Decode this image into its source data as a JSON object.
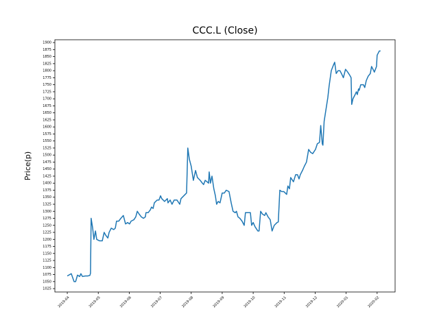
{
  "chart_data": {
    "type": "line",
    "title": "CCC.L (Close)",
    "y_label": "Price(p)",
    "color": "#1f77b4",
    "x": [
      0,
      0.13,
      0.22,
      0.27,
      0.33,
      0.4,
      0.44,
      0.49,
      0.58,
      0.66,
      0.73,
      0.75,
      0.77,
      0.82,
      0.86,
      0.91,
      0.95,
      1.04,
      1.13,
      1.19,
      1.24,
      1.31,
      1.35,
      1.42,
      1.5,
      1.55,
      1.59,
      1.66,
      1.73,
      1.81,
      1.88,
      1.95,
      2.01,
      2.06,
      2.15,
      2.21,
      2.26,
      2.32,
      2.39,
      2.46,
      2.52,
      2.54,
      2.61,
      2.68,
      2.72,
      2.77,
      2.81,
      2.9,
      2.96,
      3.01,
      3.05,
      3.14,
      3.23,
      3.25,
      3.32,
      3.38,
      3.45,
      3.54,
      3.63,
      3.67,
      3.76,
      3.85,
      3.89,
      3.94,
      4.0,
      4.07,
      4.14,
      4.2,
      4.29,
      4.36,
      4.4,
      4.45,
      4.51,
      4.56,
      4.58,
      4.62,
      4.67,
      4.73,
      4.78,
      4.82,
      4.87,
      4.93,
      5.0,
      5.07,
      5.13,
      5.22,
      5.29,
      5.35,
      5.42,
      5.46,
      5.51,
      5.57,
      5.64,
      5.71,
      5.75,
      5.84,
      5.91,
      5.95,
      6.0,
      6.06,
      6.15,
      6.19,
      6.24,
      6.3,
      6.37,
      6.41,
      6.48,
      6.55,
      6.61,
      6.68,
      6.77,
      6.81,
      6.86,
      6.92,
      6.99,
      7.08,
      7.12,
      7.17,
      7.21,
      7.3,
      7.37,
      7.43,
      7.48,
      7.52,
      7.59,
      7.65,
      7.72,
      7.79,
      7.85,
      7.92,
      8.01,
      8.07,
      8.14,
      8.18,
      8.23,
      8.25,
      8.29,
      8.36,
      8.41,
      8.45,
      8.52,
      8.59,
      8.63,
      8.68,
      8.74,
      8.8,
      8.87,
      8.91,
      8.98,
      9.05,
      9.11,
      9.16,
      9.18,
      9.22,
      9.29,
      9.33,
      9.36,
      9.4,
      9.42,
      9.47,
      9.56,
      9.6,
      9.65,
      9.71,
      9.78,
      9.82,
      9.89,
      9.91,
      9.98,
      10.0,
      10.07,
      10.11
    ],
    "values": [
      1070,
      1078,
      1050,
      1050,
      1073,
      1068,
      1078,
      1068,
      1070,
      1070,
      1072,
      1080,
      1275,
      1240,
      1200,
      1230,
      1200,
      1195,
      1195,
      1225,
      1215,
      1205,
      1225,
      1240,
      1235,
      1240,
      1265,
      1265,
      1275,
      1285,
      1255,
      1260,
      1255,
      1265,
      1270,
      1280,
      1300,
      1290,
      1280,
      1275,
      1280,
      1295,
      1295,
      1305,
      1315,
      1310,
      1330,
      1340,
      1340,
      1355,
      1345,
      1335,
      1345,
      1330,
      1340,
      1325,
      1340,
      1340,
      1325,
      1345,
      1355,
      1365,
      1525,
      1485,
      1460,
      1410,
      1445,
      1420,
      1410,
      1400,
      1395,
      1410,
      1405,
      1400,
      1440,
      1400,
      1425,
      1380,
      1355,
      1325,
      1335,
      1330,
      1365,
      1365,
      1375,
      1370,
      1330,
      1300,
      1295,
      1300,
      1280,
      1275,
      1265,
      1250,
      1295,
      1295,
      1295,
      1250,
      1260,
      1245,
      1230,
      1230,
      1300,
      1290,
      1285,
      1295,
      1280,
      1270,
      1230,
      1250,
      1260,
      1262,
      1375,
      1370,
      1370,
      1360,
      1390,
      1380,
      1420,
      1405,
      1430,
      1430,
      1415,
      1430,
      1445,
      1460,
      1475,
      1520,
      1510,
      1505,
      1520,
      1540,
      1545,
      1605,
      1540,
      1535,
      1620,
      1670,
      1705,
      1745,
      1800,
      1820,
      1830,
      1790,
      1800,
      1800,
      1785,
      1775,
      1805,
      1795,
      1785,
      1775,
      1680,
      1700,
      1715,
      1725,
      1715,
      1735,
      1730,
      1750,
      1750,
      1740,
      1765,
      1780,
      1790,
      1815,
      1800,
      1795,
      1815,
      1855,
      1870,
      1870
    ],
    "xlim": [
      -0.4,
      10.58
    ],
    "xticks": [
      {
        "value": 0,
        "label": "2019-04"
      },
      {
        "value": 1,
        "label": "2019-05"
      },
      {
        "value": 2,
        "label": "2019-06"
      },
      {
        "value": 3,
        "label": "2019-07"
      },
      {
        "value": 4,
        "label": "2019-08"
      },
      {
        "value": 5,
        "label": "2019-09"
      },
      {
        "value": 6,
        "label": "2019-10"
      },
      {
        "value": 7,
        "label": "2019-11"
      },
      {
        "value": 8,
        "label": "2019-12"
      },
      {
        "value": 9,
        "label": "2020-01"
      },
      {
        "value": 10,
        "label": "2020-02"
      }
    ],
    "ylim": [
      1013,
      1910
    ],
    "yticks": [
      1025,
      1050,
      1075,
      1100,
      1125,
      1150,
      1175,
      1200,
      1225,
      1250,
      1275,
      1300,
      1325,
      1350,
      1375,
      1400,
      1425,
      1450,
      1475,
      1500,
      1525,
      1550,
      1575,
      1600,
      1625,
      1650,
      1675,
      1700,
      1725,
      1750,
      1775,
      1800,
      1825,
      1850,
      1875,
      1900
    ]
  }
}
